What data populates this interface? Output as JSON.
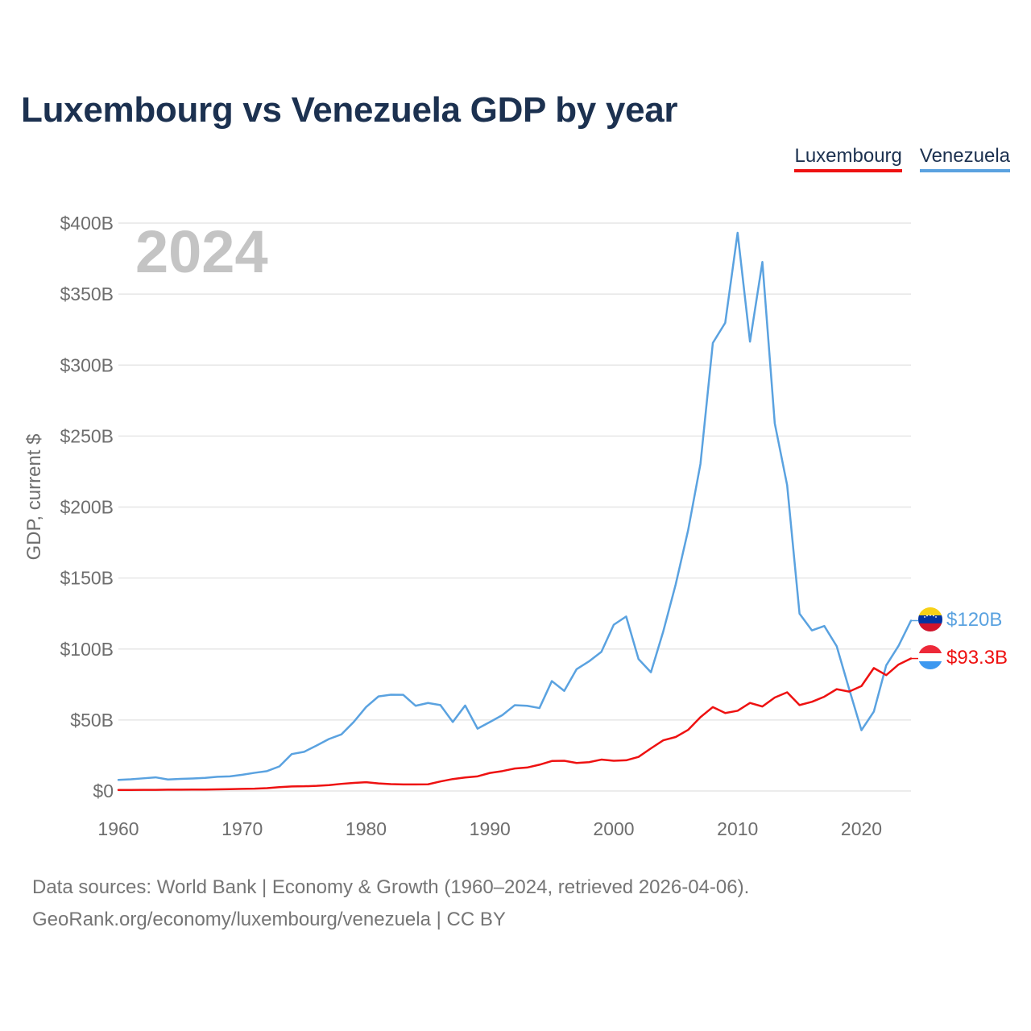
{
  "title": "Luxembourg vs Venezuela GDP by year",
  "year_label": "2024",
  "legend": [
    {
      "label": "Luxembourg",
      "color": "#ee1111"
    },
    {
      "label": "Venezuela",
      "color": "#5aa2e0"
    }
  ],
  "footer": {
    "line1": "Data sources: World Bank | Economy & Growth (1960–2024, retrieved 2026-04-06).",
    "line2": "GeoRank.org/economy/luxembourg/venezuela | CC BY"
  },
  "chart_data": {
    "type": "line",
    "title": "Luxembourg vs Venezuela GDP by year",
    "xlabel": "",
    "ylabel": "GDP, current $",
    "xlim": [
      1960,
      2024
    ],
    "ylim": [
      0,
      400
    ],
    "y_unit": "billion USD",
    "grid": true,
    "legend_position": "top-right",
    "x_ticks": [
      1960,
      1970,
      1980,
      1990,
      2000,
      2010,
      2020
    ],
    "x_tick_labels": [
      "1960",
      "1970",
      "1980",
      "1990",
      "2000",
      "2010",
      "2020"
    ],
    "y_ticks": [
      0,
      50,
      100,
      150,
      200,
      250,
      300,
      350,
      400
    ],
    "y_tick_labels": [
      "$0",
      "$50B",
      "$100B",
      "$150B",
      "$200B",
      "$250B",
      "$300B",
      "$350B",
      "$400B"
    ],
    "x": [
      1960,
      1961,
      1962,
      1963,
      1964,
      1965,
      1966,
      1967,
      1968,
      1969,
      1970,
      1971,
      1972,
      1973,
      1974,
      1975,
      1976,
      1977,
      1978,
      1979,
      1980,
      1981,
      1982,
      1983,
      1984,
      1985,
      1986,
      1987,
      1988,
      1989,
      1990,
      1991,
      1992,
      1993,
      1994,
      1995,
      1996,
      1997,
      1998,
      1999,
      2000,
      2001,
      2002,
      2003,
      2004,
      2005,
      2006,
      2007,
      2008,
      2009,
      2010,
      2011,
      2012,
      2013,
      2014,
      2015,
      2016,
      2017,
      2018,
      2019,
      2020,
      2021,
      2022,
      2023,
      2024
    ],
    "series": [
      {
        "name": "Luxembourg",
        "color": "#ee1111",
        "end_label": "$93.3B",
        "flag": "luxembourg-flag-icon",
        "values": [
          0.7,
          0.7,
          0.8,
          0.8,
          0.9,
          0.9,
          1.0,
          1.0,
          1.1,
          1.3,
          1.5,
          1.6,
          2.0,
          2.7,
          3.2,
          3.3,
          3.6,
          4.1,
          5.0,
          5.7,
          6.2,
          5.3,
          4.8,
          4.6,
          4.6,
          4.7,
          6.7,
          8.4,
          9.5,
          10.3,
          12.7,
          14.0,
          15.8,
          16.5,
          18.5,
          21.1,
          21.3,
          19.7,
          20.3,
          22.1,
          21.3,
          21.6,
          24.0,
          30.0,
          35.7,
          38.0,
          43.0,
          52.0,
          59.1,
          54.9,
          56.5,
          62.0,
          59.5,
          65.8,
          69.5,
          60.5,
          62.8,
          66.4,
          71.7,
          70.0,
          73.9,
          86.6,
          81.6,
          89.1,
          93.3
        ]
      },
      {
        "name": "Venezuela",
        "color": "#5aa2e0",
        "end_label": "$120B",
        "flag": "venezuela-flag-icon",
        "values": [
          7.8,
          8.2,
          8.9,
          9.6,
          8.1,
          8.5,
          8.8,
          9.2,
          10.0,
          10.3,
          11.4,
          12.8,
          14.0,
          17.3,
          26.0,
          27.6,
          32.0,
          36.6,
          39.8,
          48.6,
          59.1,
          66.6,
          67.8,
          67.7,
          60.0,
          62.0,
          60.5,
          48.6,
          60.2,
          43.9,
          48.6,
          53.4,
          60.4,
          60.0,
          58.4,
          77.4,
          70.5,
          85.8,
          91.3,
          98.0,
          117.1,
          122.9,
          92.9,
          83.6,
          112.5,
          145.5,
          183.5,
          230.4,
          315.6,
          329.8,
          393.2,
          316.5,
          372.6,
          258.9,
          215.4,
          124.9,
          113.1,
          116.2,
          102.0,
          72.0,
          42.8,
          55.9,
          88.5,
          102.3,
          120.0
        ]
      }
    ]
  }
}
